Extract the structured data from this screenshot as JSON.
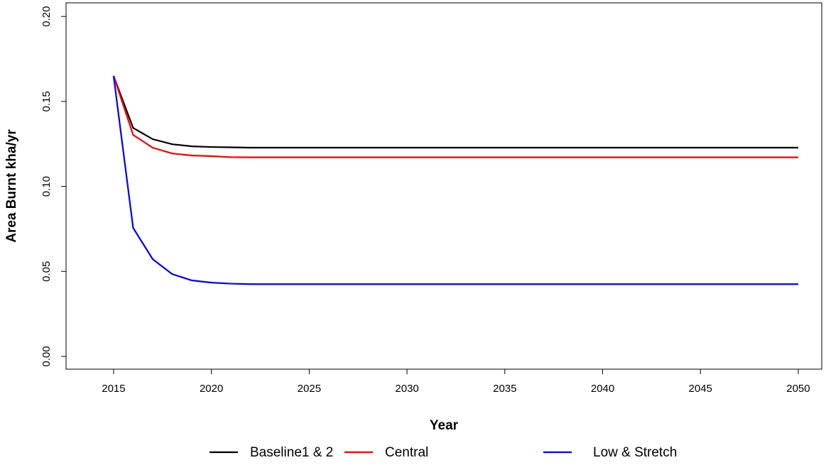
{
  "chart_data": {
    "type": "line",
    "x_label": "Year",
    "y_label": "Area Burnt kha/yr",
    "x": [
      2015,
      2016,
      2017,
      2018,
      2019,
      2020,
      2021,
      2022,
      2023,
      2024,
      2025,
      2026,
      2027,
      2028,
      2029,
      2030,
      2031,
      2032,
      2033,
      2034,
      2035,
      2036,
      2037,
      2038,
      2039,
      2040,
      2041,
      2042,
      2043,
      2044,
      2045,
      2046,
      2047,
      2048,
      2049,
      2050
    ],
    "series": [
      {
        "name": "Baseline1 & 2",
        "color": "#000000",
        "values": [
          0.165,
          0.1344,
          0.1278,
          0.1248,
          0.1236,
          0.1232,
          0.123,
          0.1228,
          0.1228,
          0.1228,
          0.1228,
          0.1228,
          0.1228,
          0.1228,
          0.1228,
          0.1228,
          0.1228,
          0.1228,
          0.1228,
          0.1228,
          0.1228,
          0.1228,
          0.1228,
          0.1228,
          0.1228,
          0.1228,
          0.1228,
          0.1228,
          0.1228,
          0.1228,
          0.1228,
          0.1228,
          0.1228,
          0.1228,
          0.1228,
          0.1228
        ]
      },
      {
        "name": "Central",
        "color": "#ff0000",
        "values": [
          0.165,
          0.1303,
          0.1228,
          0.1194,
          0.1182,
          0.1178,
          0.1172,
          0.1171,
          0.1171,
          0.1171,
          0.1171,
          0.1171,
          0.1171,
          0.1171,
          0.1171,
          0.1171,
          0.1171,
          0.1171,
          0.1171,
          0.1171,
          0.1171,
          0.1171,
          0.1171,
          0.1171,
          0.1171,
          0.1171,
          0.1171,
          0.1171,
          0.1171,
          0.1171,
          0.1171,
          0.1171,
          0.1171,
          0.1171,
          0.1171,
          0.1171
        ]
      },
      {
        "name": "Low & Stretch",
        "color": "#0000ff",
        "values": [
          0.165,
          0.0756,
          0.0572,
          0.0484,
          0.0447,
          0.0434,
          0.0428,
          0.0425,
          0.0425,
          0.0425,
          0.0425,
          0.0425,
          0.0425,
          0.0425,
          0.0425,
          0.0425,
          0.0425,
          0.0425,
          0.0425,
          0.0425,
          0.0425,
          0.0425,
          0.0425,
          0.0425,
          0.0425,
          0.0425,
          0.0425,
          0.0425,
          0.0425,
          0.0425,
          0.0425,
          0.0425,
          0.0425,
          0.0425,
          0.0425,
          0.0425
        ]
      }
    ],
    "xlim": [
      2012.57,
      2051.2
    ],
    "ylim": [
      -0.0075,
      0.208
    ],
    "xticks": [
      2015,
      2020,
      2025,
      2030,
      2035,
      2040,
      2045,
      2050
    ],
    "yticks": [
      {
        "value": 0,
        "label": "0.00"
      },
      0.05,
      {
        "value": 0.1,
        "label": "0.10"
      },
      0.15,
      {
        "value": 0.2,
        "label": "0.20"
      }
    ],
    "legend": "bottom"
  }
}
